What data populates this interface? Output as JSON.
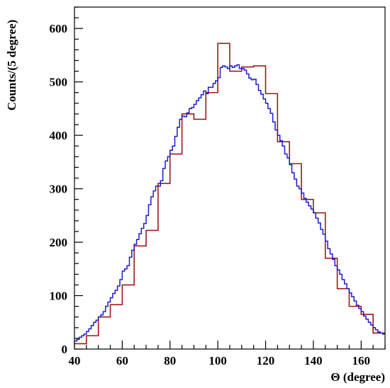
{
  "chart_data": {
    "type": "line",
    "title": "",
    "xlabel": "Θ (degree)",
    "ylabel": "Counts/(5 degree)",
    "xlim": [
      40,
      170
    ],
    "ylim": [
      0,
      640
    ],
    "x_ticks": [
      40,
      60,
      80,
      100,
      120,
      140,
      160
    ],
    "y_ticks": [
      0,
      100,
      200,
      300,
      400,
      500,
      600
    ],
    "x_minor_step": 5,
    "y_minor_step": 20,
    "grid": false,
    "legend": "none",
    "series": [
      {
        "color": "#a01818",
        "style": "step",
        "bin_width": 5,
        "bins": [
          40,
          45,
          50,
          55,
          60,
          65,
          70,
          75,
          80,
          85,
          90,
          95,
          100,
          105,
          110,
          115,
          120,
          125,
          130,
          135,
          140,
          145,
          150,
          155,
          160,
          165
        ],
        "values": [
          10,
          25,
          60,
          83,
          120,
          193,
          222,
          310,
          365,
          440,
          430,
          480,
          572,
          520,
          528,
          530,
          478,
          388,
          347,
          280,
          255,
          170,
          113,
          80,
          65,
          30
        ]
      },
      {
        "color": "#1c1ccc",
        "style": "step",
        "bin_width": 1,
        "bins": [
          40,
          41,
          42,
          43,
          44,
          45,
          46,
          47,
          48,
          49,
          50,
          51,
          52,
          53,
          54,
          55,
          56,
          57,
          58,
          59,
          60,
          61,
          62,
          63,
          64,
          65,
          66,
          67,
          68,
          69,
          70,
          71,
          72,
          73,
          74,
          75,
          76,
          77,
          78,
          79,
          80,
          81,
          82,
          83,
          84,
          85,
          86,
          87,
          88,
          89,
          90,
          91,
          92,
          93,
          94,
          95,
          96,
          97,
          98,
          99,
          100,
          101,
          102,
          103,
          104,
          105,
          106,
          107,
          108,
          109,
          110,
          111,
          112,
          113,
          114,
          115,
          116,
          117,
          118,
          119,
          120,
          121,
          122,
          123,
          124,
          125,
          126,
          127,
          128,
          129,
          130,
          131,
          132,
          133,
          134,
          135,
          136,
          137,
          138,
          139,
          140,
          141,
          142,
          143,
          144,
          145,
          146,
          147,
          148,
          149,
          150,
          151,
          152,
          153,
          154,
          155,
          156,
          157,
          158,
          159,
          160,
          161,
          162,
          163,
          164,
          165,
          166,
          167,
          168,
          169
        ],
        "values": [
          15,
          18,
          22,
          25,
          28,
          33,
          38,
          44,
          50,
          54,
          60,
          64,
          70,
          80,
          88,
          96,
          104,
          110,
          118,
          130,
          146,
          150,
          156,
          172,
          185,
          196,
          205,
          216,
          226,
          235,
          250,
          270,
          285,
          296,
          305,
          305,
          315,
          338,
          352,
          360,
          372,
          380,
          398,
          415,
          430,
          436,
          435,
          442,
          450,
          452,
          458,
          465,
          470,
          476,
          483,
          478,
          490,
          490,
          497,
          502,
          508,
          527,
          530,
          528,
          525,
          530,
          527,
          530,
          532,
          525,
          525,
          522,
          515,
          507,
          504,
          505,
          495,
          484,
          477,
          468,
          460,
          450,
          441,
          425,
          410,
          400,
          390,
          380,
          365,
          358,
          345,
          330,
          318,
          305,
          300,
          292,
          282,
          275,
          268,
          262,
          255,
          245,
          236,
          224,
          215,
          202,
          188,
          178,
          168,
          156,
          148,
          140,
          130,
          122,
          113,
          105,
          98,
          90,
          82,
          76,
          70,
          62,
          56,
          50,
          45,
          40,
          36,
          32,
          30,
          28
        ]
      }
    ]
  }
}
